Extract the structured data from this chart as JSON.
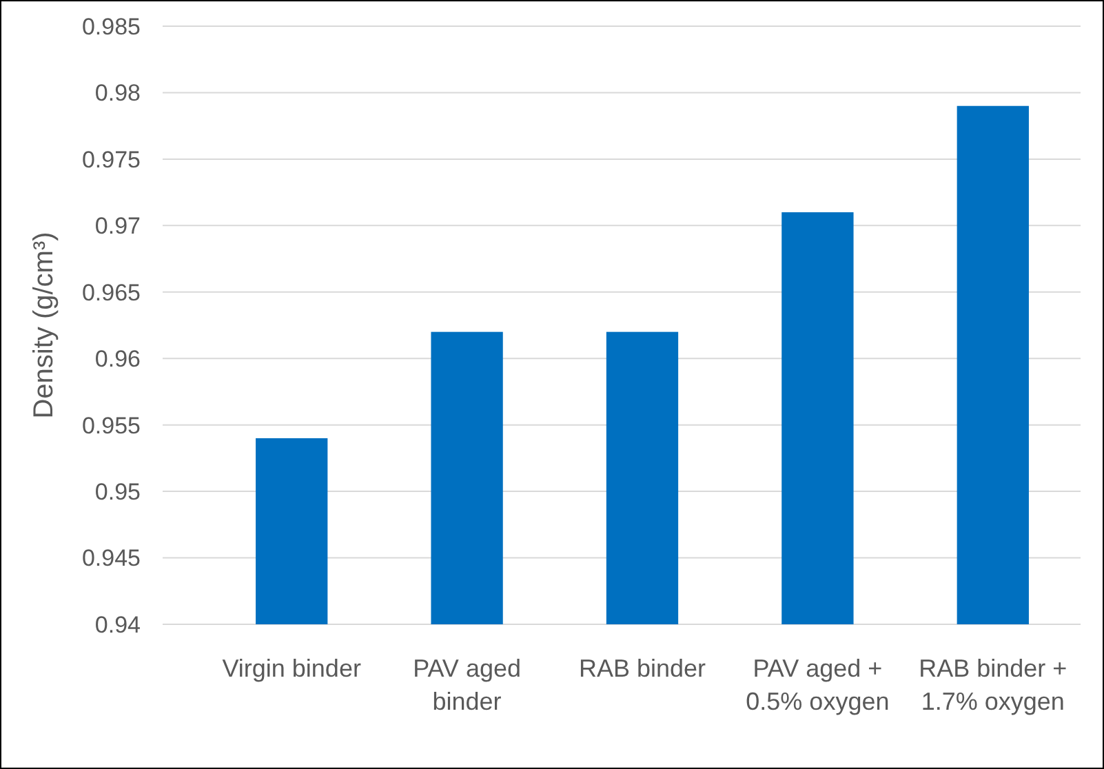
{
  "chart_data": {
    "type": "bar",
    "ylabel": "Density (g/cm³)",
    "categories": [
      "Virgin binder",
      "PAV aged binder",
      "RAB binder",
      "PAV aged + 0.5% oxygen",
      "RAB binder + 1.7% oxygen"
    ],
    "values": [
      0.954,
      0.962,
      0.962,
      0.971,
      0.979
    ],
    "color": "#0070c0",
    "ylim": [
      0.94,
      0.985
    ],
    "yticks": [
      0.94,
      0.945,
      0.95,
      0.955,
      0.96,
      0.965,
      0.97,
      0.975,
      0.98,
      0.985
    ],
    "grid": true
  }
}
